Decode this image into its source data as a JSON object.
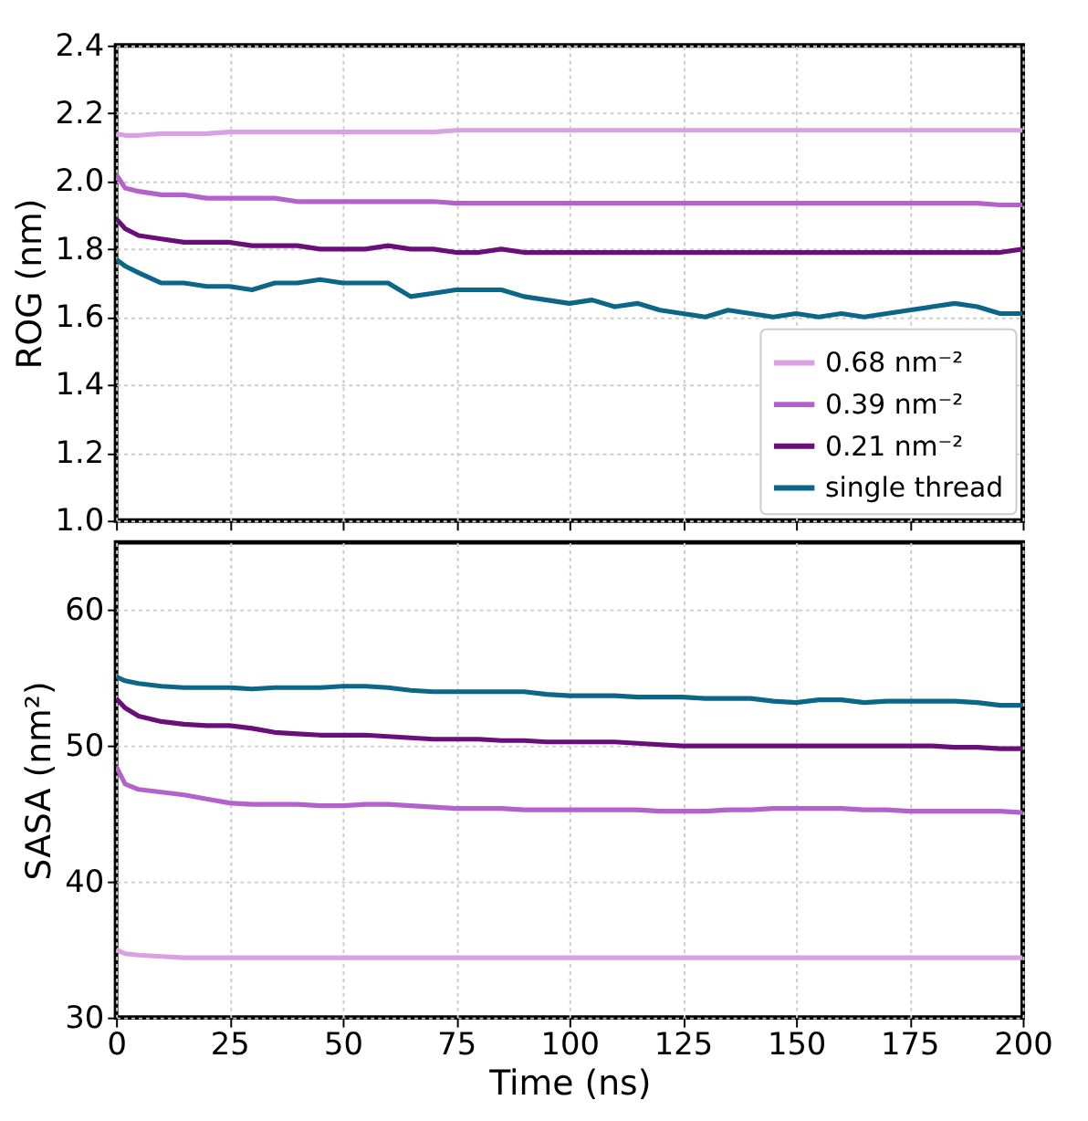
{
  "chart_data": [
    {
      "type": "line",
      "ylabel": "ROG (nm)",
      "xlim": [
        0,
        200
      ],
      "xticks": [
        0,
        25,
        50,
        75,
        100,
        125,
        150,
        175,
        200
      ],
      "ylim": [
        1.0,
        2.4
      ],
      "yticks": [
        {
          "value": 1,
          "label": "1.0"
        },
        1.2,
        1.4,
        1.6,
        1.8,
        {
          "value": 2,
          "label": "2.0"
        },
        2.2,
        2.4
      ],
      "grid": true,
      "legend": "bottom right",
      "tick_labels": "y",
      "line_style": "solid",
      "marker": "none",
      "x": [
        0,
        2,
        5,
        10,
        15,
        20,
        25,
        30,
        35,
        40,
        45,
        50,
        55,
        60,
        65,
        70,
        75,
        80,
        85,
        90,
        95,
        100,
        105,
        110,
        115,
        120,
        125,
        130,
        135,
        140,
        145,
        150,
        155,
        160,
        165,
        170,
        175,
        180,
        185,
        190,
        195,
        200
      ],
      "series": [
        {
          "name": "0.68 nm⁻²",
          "color": "#d8a2e2",
          "values": [
            2.14,
            2.135,
            2.135,
            2.14,
            2.14,
            2.14,
            2.145,
            2.145,
            2.145,
            2.145,
            2.145,
            2.145,
            2.145,
            2.145,
            2.145,
            2.145,
            2.15,
            2.15,
            2.15,
            2.15,
            2.15,
            2.15,
            2.15,
            2.15,
            2.15,
            2.15,
            2.15,
            2.15,
            2.15,
            2.15,
            2.15,
            2.15,
            2.15,
            2.15,
            2.15,
            2.15,
            2.15,
            2.15,
            2.15,
            2.15,
            2.15,
            2.15
          ]
        },
        {
          "name": "0.39 nm⁻²",
          "color": "#b362cc",
          "values": [
            2.02,
            1.98,
            1.97,
            1.96,
            1.96,
            1.95,
            1.95,
            1.95,
            1.95,
            1.94,
            1.94,
            1.94,
            1.94,
            1.94,
            1.94,
            1.94,
            1.935,
            1.935,
            1.935,
            1.935,
            1.935,
            1.935,
            1.935,
            1.935,
            1.935,
            1.935,
            1.935,
            1.935,
            1.935,
            1.935,
            1.935,
            1.935,
            1.935,
            1.935,
            1.935,
            1.935,
            1.935,
            1.935,
            1.935,
            1.935,
            1.93,
            1.93
          ]
        },
        {
          "name": "0.21 nm⁻²",
          "color": "#6a0f7a",
          "values": [
            1.89,
            1.86,
            1.84,
            1.83,
            1.82,
            1.82,
            1.82,
            1.81,
            1.81,
            1.81,
            1.8,
            1.8,
            1.8,
            1.81,
            1.8,
            1.8,
            1.79,
            1.79,
            1.8,
            1.79,
            1.79,
            1.79,
            1.79,
            1.79,
            1.79,
            1.79,
            1.79,
            1.79,
            1.79,
            1.79,
            1.79,
            1.79,
            1.79,
            1.79,
            1.79,
            1.79,
            1.79,
            1.79,
            1.79,
            1.79,
            1.79,
            1.8
          ]
        },
        {
          "name": "single thread",
          "color": "#0b6688",
          "values": [
            1.77,
            1.75,
            1.73,
            1.7,
            1.7,
            1.69,
            1.69,
            1.68,
            1.7,
            1.7,
            1.71,
            1.7,
            1.7,
            1.7,
            1.66,
            1.67,
            1.68,
            1.68,
            1.68,
            1.66,
            1.65,
            1.64,
            1.65,
            1.63,
            1.64,
            1.62,
            1.61,
            1.6,
            1.62,
            1.61,
            1.6,
            1.61,
            1.6,
            1.61,
            1.6,
            1.61,
            1.62,
            1.63,
            1.64,
            1.63,
            1.61,
            1.61
          ]
        }
      ]
    },
    {
      "type": "line",
      "ylabel": "SASA (nm²)",
      "xlabel": "Time (ns)",
      "xlim": [
        0,
        200
      ],
      "xticks": [
        0,
        25,
        50,
        75,
        100,
        125,
        150,
        175,
        200
      ],
      "ylim": [
        30,
        65
      ],
      "yticks": [
        30,
        40,
        50,
        60
      ],
      "grid": true,
      "line_style": "solid",
      "marker": "none",
      "x": [
        0,
        2,
        5,
        10,
        15,
        20,
        25,
        30,
        35,
        40,
        45,
        50,
        55,
        60,
        65,
        70,
        75,
        80,
        85,
        90,
        95,
        100,
        105,
        110,
        115,
        120,
        125,
        130,
        135,
        140,
        145,
        150,
        155,
        160,
        165,
        170,
        175,
        180,
        185,
        190,
        195,
        200
      ],
      "series": [
        {
          "color": "#d8a2e2",
          "values": [
            35.0,
            34.7,
            34.6,
            34.5,
            34.4,
            34.4,
            34.4,
            34.4,
            34.4,
            34.4,
            34.4,
            34.4,
            34.4,
            34.4,
            34.4,
            34.4,
            34.4,
            34.4,
            34.4,
            34.4,
            34.4,
            34.4,
            34.4,
            34.4,
            34.4,
            34.4,
            34.4,
            34.4,
            34.4,
            34.4,
            34.4,
            34.4,
            34.4,
            34.4,
            34.4,
            34.4,
            34.4,
            34.4,
            34.4,
            34.4,
            34.4,
            34.4
          ]
        },
        {
          "color": "#b362cc",
          "values": [
            48.5,
            47.2,
            46.8,
            46.6,
            46.4,
            46.1,
            45.8,
            45.7,
            45.7,
            45.7,
            45.6,
            45.6,
            45.7,
            45.7,
            45.6,
            45.5,
            45.4,
            45.4,
            45.4,
            45.3,
            45.3,
            45.3,
            45.3,
            45.3,
            45.3,
            45.2,
            45.2,
            45.2,
            45.3,
            45.3,
            45.4,
            45.4,
            45.4,
            45.4,
            45.3,
            45.3,
            45.2,
            45.2,
            45.2,
            45.2,
            45.2,
            45.1
          ]
        },
        {
          "color": "#6a0f7a",
          "values": [
            53.5,
            52.8,
            52.2,
            51.8,
            51.6,
            51.5,
            51.5,
            51.3,
            51.0,
            50.9,
            50.8,
            50.8,
            50.8,
            50.7,
            50.6,
            50.5,
            50.5,
            50.5,
            50.4,
            50.4,
            50.3,
            50.3,
            50.3,
            50.3,
            50.2,
            50.1,
            50.0,
            50.0,
            50.0,
            50.0,
            50.0,
            50.0,
            50.0,
            50.0,
            50.0,
            50.0,
            50.0,
            50.0,
            49.9,
            49.9,
            49.8,
            49.8
          ]
        },
        {
          "color": "#0b6688",
          "values": [
            55.1,
            54.8,
            54.6,
            54.4,
            54.3,
            54.3,
            54.3,
            54.2,
            54.3,
            54.3,
            54.3,
            54.4,
            54.4,
            54.3,
            54.1,
            54.0,
            54.0,
            54.0,
            54.0,
            54.0,
            53.8,
            53.7,
            53.7,
            53.7,
            53.6,
            53.6,
            53.6,
            53.5,
            53.5,
            53.5,
            53.3,
            53.2,
            53.4,
            53.4,
            53.2,
            53.3,
            53.3,
            53.3,
            53.3,
            53.2,
            53.0,
            53.0
          ]
        }
      ]
    }
  ]
}
